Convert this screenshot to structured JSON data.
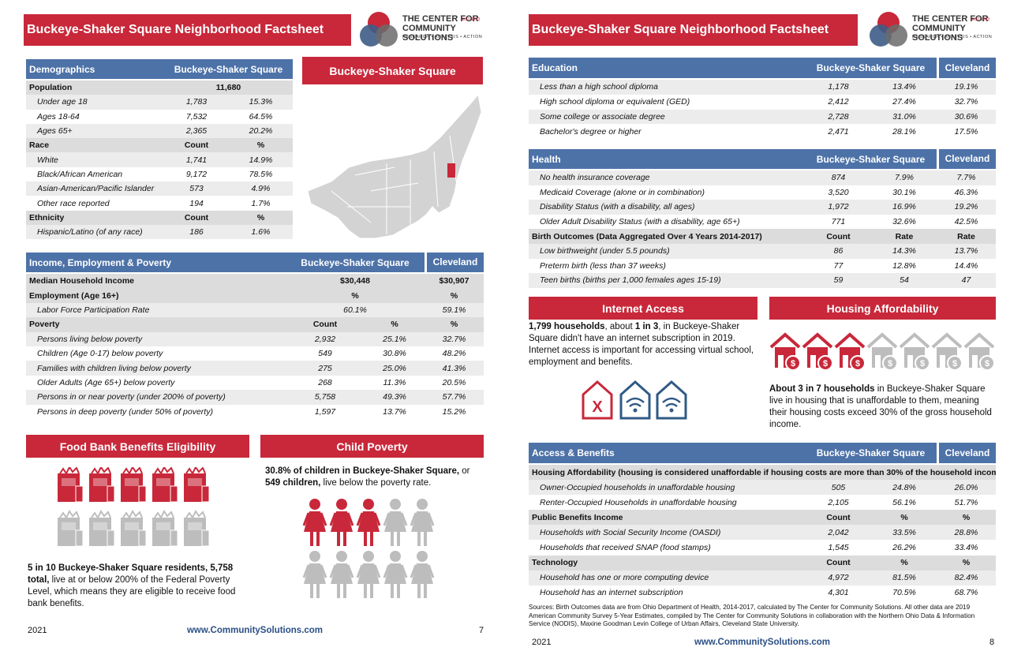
{
  "page7": {
    "title": "Buckeye-Shaker Square Neighborhood Factsheet",
    "logo": {
      "line1": "THE CENTER FOR",
      "est": "EST 1913",
      "line2": "COMMUNITY SOLUTIONS",
      "tagline": "RESEARCH • ANALYSIS • ACTION"
    },
    "demographics": {
      "header": [
        "Demographics",
        "Buckeye-Shaker Square"
      ],
      "groups": [
        {
          "heading": [
            "Population",
            "11,680"
          ],
          "rows": [
            [
              "Under age 18",
              "1,783",
              "15.3%"
            ],
            [
              "Ages 18-64",
              "7,532",
              "64.5%"
            ],
            [
              "Ages 65+",
              "2,365",
              "20.2%"
            ]
          ]
        },
        {
          "heading": [
            "Race",
            "Count",
            "%"
          ],
          "rows": [
            [
              "White",
              "1,741",
              "14.9%"
            ],
            [
              "Black/African American",
              "9,172",
              "78.5%"
            ],
            [
              "Asian-American/Pacific Islander",
              "573",
              "4.9%"
            ],
            [
              "Other race reported",
              "194",
              "1.7%"
            ]
          ]
        },
        {
          "heading": [
            "Ethnicity",
            "Count",
            "%"
          ],
          "rows": [
            [
              "Hispanic/Latino (of any race)",
              "186",
              "1.6%"
            ]
          ]
        }
      ]
    },
    "map_title": "Buckeye-Shaker Square",
    "income": {
      "header": [
        "Income, Employment & Poverty",
        "Buckeye-Shaker Square",
        "Cleveland"
      ],
      "groups": [
        {
          "heading": [
            "Median Household Income",
            "$30,448",
            "$30,907"
          ],
          "rows": []
        },
        {
          "heading": [
            "Employment (Age 16+)",
            "%",
            "%"
          ],
          "rows": [
            [
              "Labor Force Participation Rate",
              "60.1%",
              "59.1%"
            ]
          ]
        },
        {
          "heading": [
            "Poverty",
            "Count",
            "%",
            "%"
          ],
          "rows": [
            [
              "Persons living below poverty",
              "2,932",
              "25.1%",
              "32.7%"
            ],
            [
              "Children (Age 0-17) below poverty",
              "549",
              "30.8%",
              "48.2%"
            ],
            [
              "Families with children living below poverty",
              "275",
              "25.0%",
              "41.3%"
            ],
            [
              "Older Adults (Age 65+) below poverty",
              "268",
              "11.3%",
              "20.5%"
            ],
            [
              "Persons in or near poverty (under 200% of poverty)",
              "5,758",
              "49.3%",
              "57.7%"
            ],
            [
              "Persons in deep poverty (under 50% of poverty)",
              "1,597",
              "13.7%",
              "15.2%"
            ]
          ]
        }
      ]
    },
    "food_bank": {
      "title": "Food Bank Benefits Eligibility",
      "text": [
        "5 in 10 Buckeye-Shaker Square residents, 5,758 total,",
        " live at or below 200% of the Federal Poverty Level, which means they are eligible to receive food bank benefits."
      ]
    },
    "child_poverty": {
      "title": "Child Poverty",
      "text": [
        "30.8% of children in Buckeye-Shaker Square,",
        " or ",
        "549 children,",
        " live below the poverty rate."
      ]
    },
    "footer": {
      "year": "2021",
      "url": "www.CommunitySolutions.com",
      "page": "7"
    }
  },
  "page8": {
    "title": "Buckeye-Shaker Square Neighborhood Factsheet",
    "logo": {
      "line1": "THE CENTER FOR",
      "est": "EST 1913",
      "line2": "COMMUNITY SOLUTIONS",
      "tagline": "RESEARCH • ANALYSIS • ACTION"
    },
    "education": {
      "header": [
        "Education",
        "Buckeye-Shaker Square",
        "Cleveland"
      ],
      "groups": [
        {
          "rows": [
            [
              "Less than a high school diploma",
              "1,178",
              "13.4%",
              "19.1%"
            ],
            [
              "High school diploma or equivalent (GED)",
              "2,412",
              "27.4%",
              "32.7%"
            ],
            [
              "Some college or associate degree",
              "2,728",
              "31.0%",
              "30.6%"
            ],
            [
              "Bachelor's degree or higher",
              "2,471",
              "28.1%",
              "17.5%"
            ]
          ]
        }
      ]
    },
    "health": {
      "header": [
        "Health",
        "Buckeye-Shaker Square",
        "Cleveland"
      ],
      "groups": [
        {
          "rows": [
            [
              "No health insurance coverage",
              "874",
              "7.9%",
              "7.7%"
            ],
            [
              "Medicaid Coverage (alone or in combination)",
              "3,520",
              "30.1%",
              "46.3%"
            ],
            [
              "Disability Status (with a disability, all ages)",
              "1,972",
              "16.9%",
              "19.2%"
            ],
            [
              "Older Adult Disability Status (with a disability, age 65+)",
              "771",
              "32.6%",
              "42.5%"
            ]
          ]
        },
        {
          "heading": [
            "Birth Outcomes (Data Aggregated Over 4 Years 2014-2017)",
            "Count",
            "Rate",
            "Rate"
          ],
          "rows": [
            [
              "Low birthweight (under 5.5 pounds)",
              "86",
              "14.3%",
              "13.7%"
            ],
            [
              "Preterm birth (less than 37 weeks)",
              "77",
              "12.8%",
              "14.4%"
            ],
            [
              "Teen births (births per 1,000 females ages 15-19)",
              "59",
              "54",
              "47"
            ]
          ]
        }
      ]
    },
    "internet": {
      "title": "Internet Access",
      "text": [
        "1,799 households",
        ", about ",
        "1 in 3",
        ", in Buckeye-Shaker Square didn't have an internet subscription in 2019. Internet access is important for accessing virtual school, employment and benefits."
      ]
    },
    "housing": {
      "title": "Housing Affordability",
      "text": [
        "About 3 in 7 households",
        " in Buckeye-Shaker Square live in housing that is unaffordable to them, meaning their housing costs exceed 30% of the gross household income."
      ]
    },
    "access": {
      "header": [
        "Access & Benefits",
        "Buckeye-Shaker Square",
        "Cleveland"
      ],
      "groups": [
        {
          "heading": [
            "Housing Affordability (housing is considered unaffordable if housing costs are more than 30% of the household income)"
          ],
          "rows": [
            [
              "Owner-Occupied households in unaffordable housing",
              "505",
              "24.8%",
              "26.0%"
            ],
            [
              "Renter-Occupied Households in unaffordable housing",
              "2,105",
              "56.1%",
              "51.7%"
            ]
          ]
        },
        {
          "heading": [
            "Public Benefits Income",
            "Count",
            "%",
            "%"
          ],
          "rows": [
            [
              "Households with Social Security Income (OASDI)",
              "2,042",
              "33.5%",
              "28.8%"
            ],
            [
              "Households that received SNAP (food stamps)",
              "1,545",
              "26.2%",
              "33.4%"
            ]
          ]
        },
        {
          "heading": [
            "Technology",
            "Count",
            "%",
            "%"
          ],
          "rows": [
            [
              "Household has one or more computing device",
              "4,972",
              "81.5%",
              "82.4%"
            ],
            [
              "Household has an internet subscription",
              "4,301",
              "70.5%",
              "68.7%"
            ]
          ]
        }
      ]
    },
    "sources": "Sources: Birth Outcomes data are from Ohio Department of Health, 2014-2017, calculated by The Center for Community Solutions. All other data are 2019 American Community Survey 5-Year Estimates, compiled by The Center for Community Solutions in collaboration with the Northern Ohio Data & Information Service (NODIS), Maxine Goodman Levin College of Urban Affairs, Cleveland State University.",
    "footer": {
      "year": "2021",
      "url": "www.CommunitySolutions.com",
      "page": "8"
    }
  }
}
